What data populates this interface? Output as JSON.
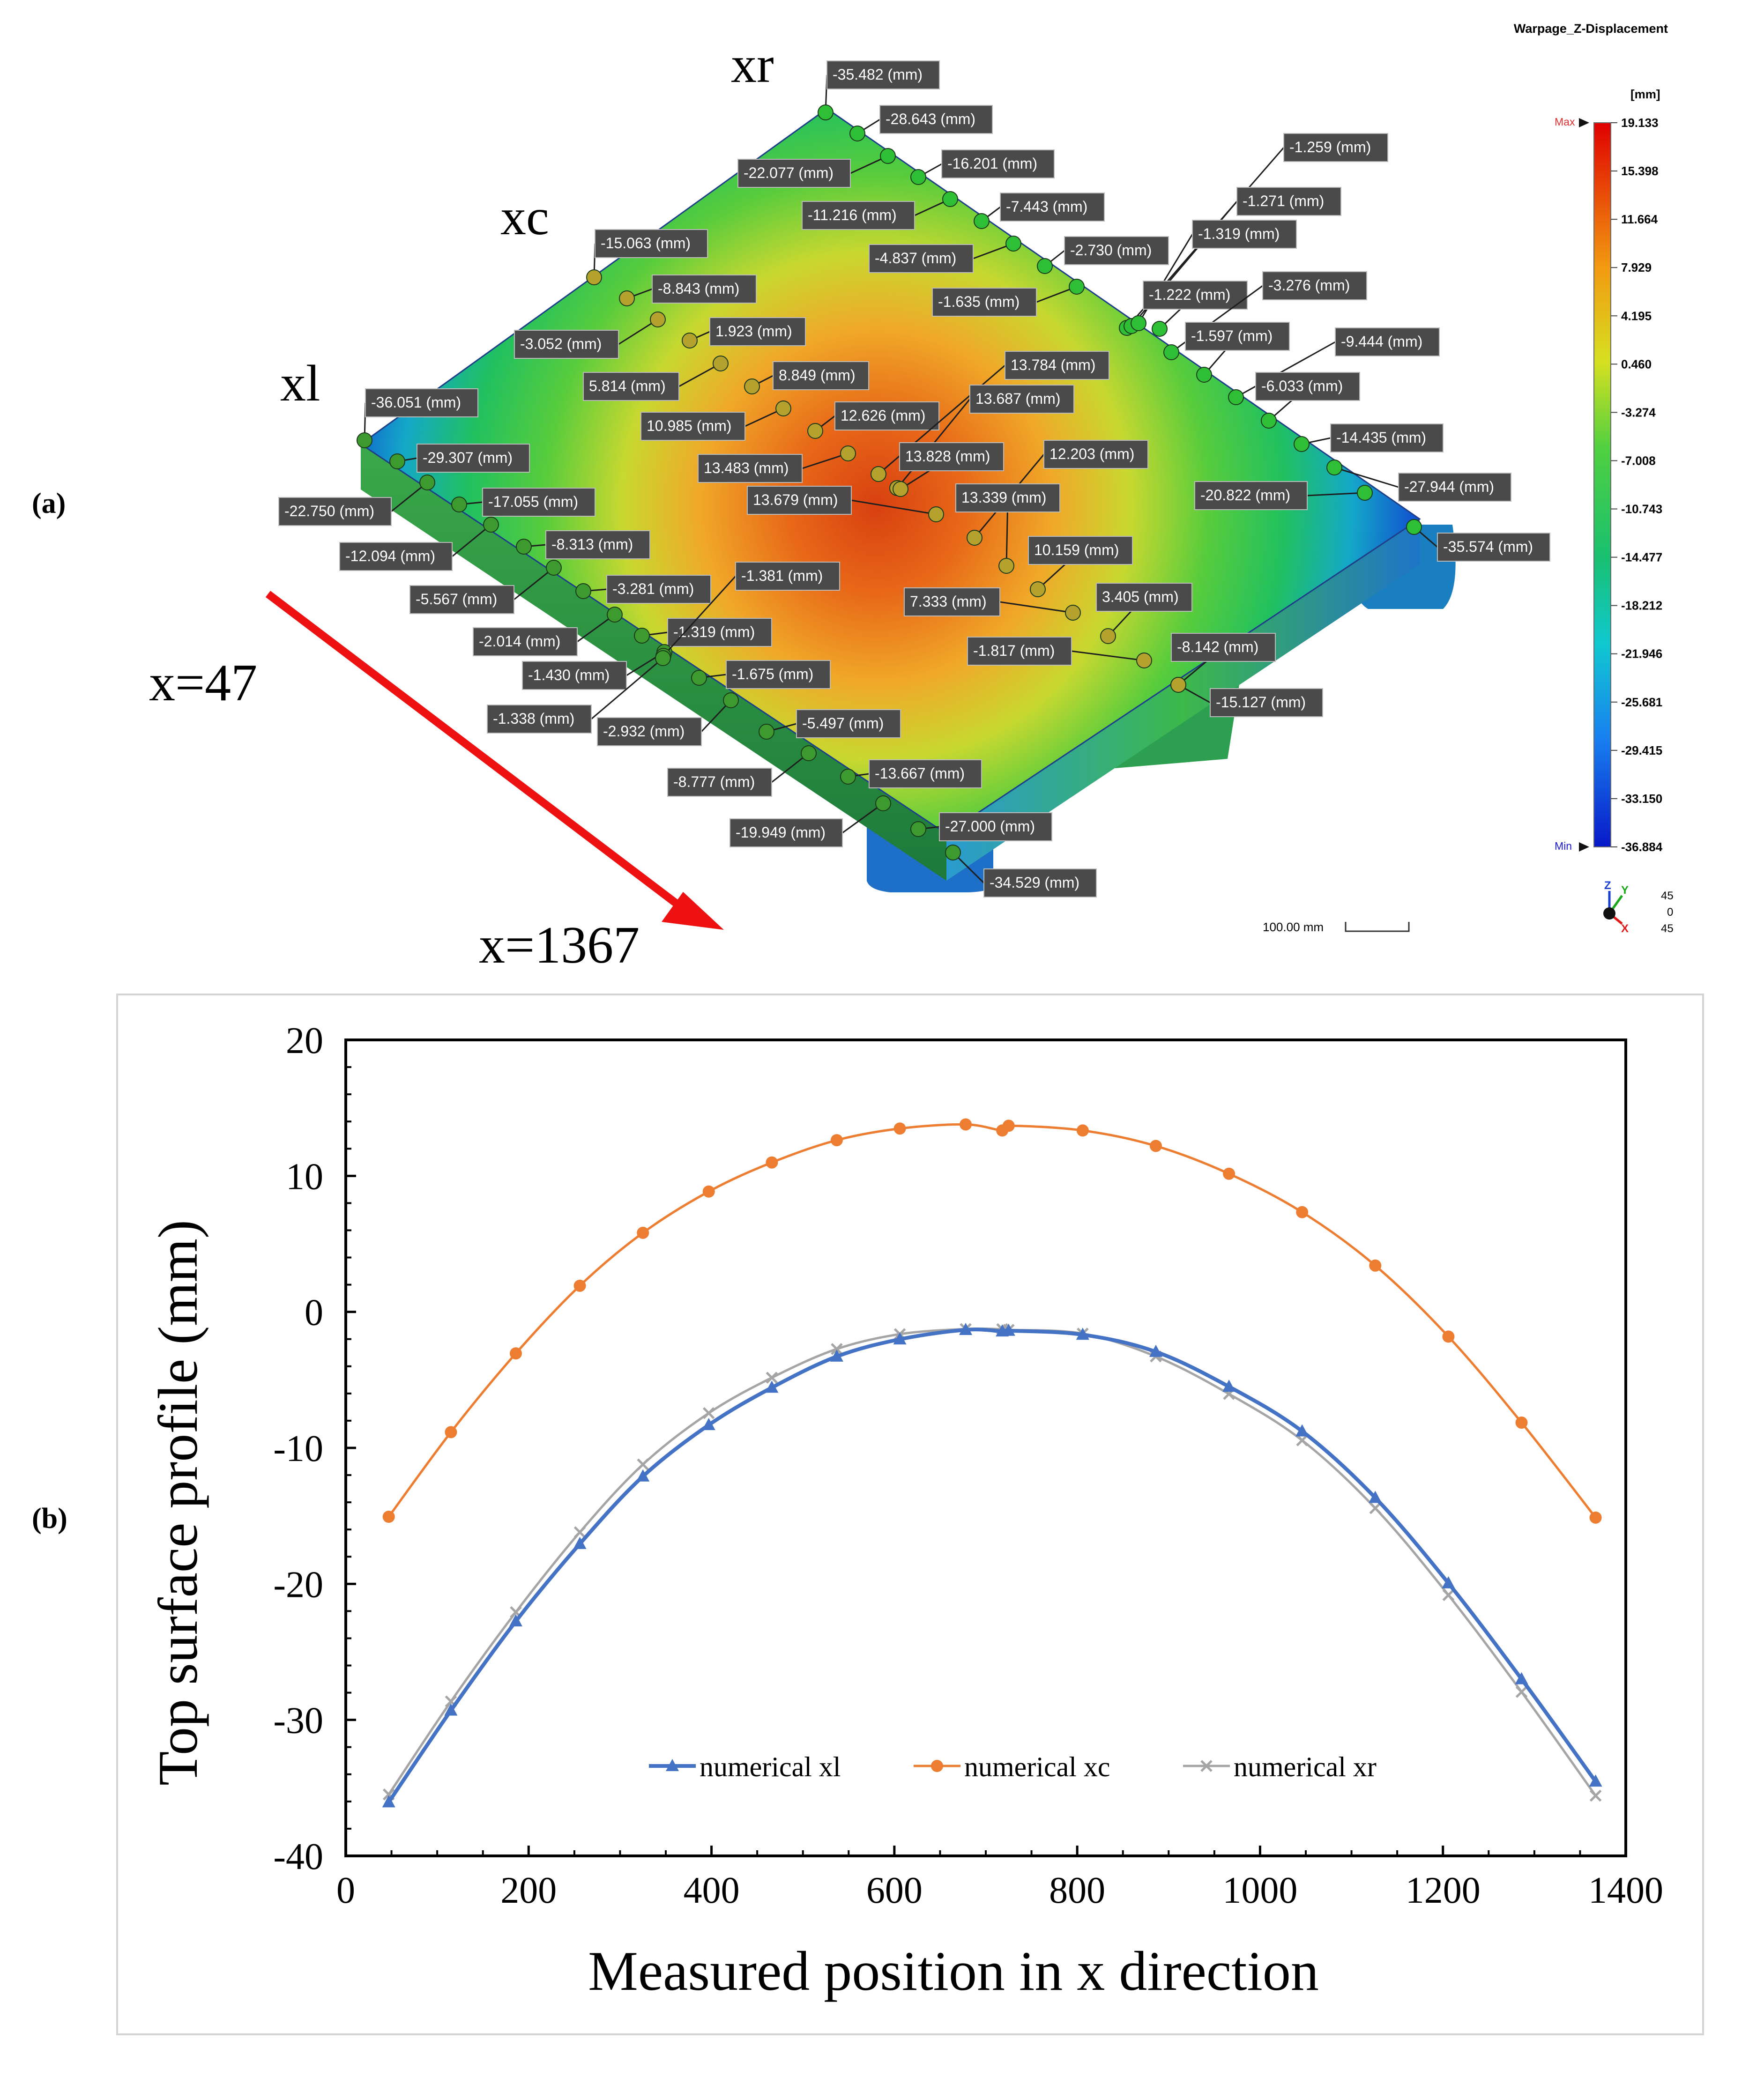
{
  "panels": {
    "a": "(a)",
    "b": "(b)"
  },
  "sim": {
    "result_title": "Warpage_Z-Displacement",
    "row_labels": {
      "xl": "xl",
      "xc": "xc",
      "xr": "xr"
    },
    "arrow_start_label": "x=47",
    "arrow_end_label": "x=1367",
    "scale_bar_label": "100.00 mm",
    "legend_unit": "[mm]",
    "legend_max_label": "Max",
    "legend_min_label": "Min",
    "legend_ticks": [
      "19.133",
      "15.398",
      "11.664",
      "7.929",
      "4.195",
      "0.460",
      "-3.274",
      "-7.008",
      "-10.743",
      "-14.477",
      "-18.212",
      "-21.946",
      "-25.681",
      "-29.415",
      "-33.150",
      "-36.884"
    ],
    "legend_colors": [
      "#e00000",
      "#ee5010",
      "#f29a10",
      "#f0c820",
      "#d6e020",
      "#9ee030",
      "#50d040",
      "#1ec850",
      "#18c070",
      "#10c0a0",
      "#10c8d0",
      "#10b0f0",
      "#1880f0",
      "#1050e0",
      "#0a30d0",
      "#0818c8"
    ],
    "triad": {
      "z": "Z",
      "y": "Y",
      "x": "X",
      "a1": "45",
      "a2": "0",
      "a3": "45"
    },
    "xl_callouts": [
      "-36.051 (mm)",
      "-29.307 (mm)",
      "-22.750 (mm)",
      "-17.055 (mm)",
      "-12.094 (mm)",
      "-8.313 (mm)",
      "-5.567 (mm)",
      "-3.281 (mm)",
      "-2.014 (mm)",
      "-1.319 (mm)",
      "-1.430 (mm)",
      "-1.381 (mm)",
      "-1.338 (mm)",
      "-1.675 (mm)",
      "-2.932 (mm)",
      "-5.497 (mm)",
      "-8.777 (mm)",
      "-13.667 (mm)",
      "-19.949 (mm)",
      "-27.000 (mm)",
      "-34.529 (mm)"
    ],
    "xc_callouts": [
      "-15.063 (mm)",
      "-8.843 (mm)",
      "-3.052 (mm)",
      "1.923 (mm)",
      "5.814 (mm)",
      "8.849 (mm)",
      "10.985 (mm)",
      "12.626 (mm)",
      "13.483 (mm)",
      "13.784 (mm)",
      "13.687 (mm)",
      "13.828 (mm)",
      "13.679 (mm)",
      "12.203 (mm)",
      "13.339 (mm)",
      "10.159 (mm)",
      "7.333 (mm)",
      "3.405 (mm)",
      "-1.817 (mm)",
      "-8.142 (mm)",
      "-15.127 (mm)"
    ],
    "xr_callouts": [
      "-35.482 (mm)",
      "-28.643 (mm)",
      "-22.077 (mm)",
      "-16.201 (mm)",
      "-11.216 (mm)",
      "-7.443 (mm)",
      "-4.837 (mm)",
      "-2.730 (mm)",
      "-1.635 (mm)",
      "-1.259 (mm)",
      "-1.271 (mm)",
      "-1.319 (mm)",
      "-1.222 (mm)",
      "-3.276 (mm)",
      "-1.597 (mm)",
      "-9.444 (mm)",
      "-6.033 (mm)",
      "-14.435 (mm)",
      "-27.944 (mm)",
      "-20.822 (mm)",
      "-35.574 (mm)"
    ]
  },
  "chart_data": {
    "type": "line",
    "title": "",
    "xlabel": "Measured position in x direction",
    "ylabel": "Top surface profile (mm)",
    "xlim": [
      0,
      1400
    ],
    "ylim": [
      -40,
      20
    ],
    "xticks": [
      0,
      200,
      400,
      600,
      800,
      1000,
      1200,
      1400
    ],
    "yticks": [
      20,
      10,
      0,
      -10,
      -20,
      -30,
      -40
    ],
    "grid": false,
    "legend_position": "bottom-center",
    "series": [
      {
        "name": "numerical xl",
        "color": "#4472c4",
        "marker": "triangle",
        "x": [
          47,
          115,
          186,
          256,
          325,
          397,
          466,
          537,
          606,
          678,
          718,
          725,
          806,
          886,
          966,
          1046,
          1126,
          1206,
          1286,
          1367
        ],
        "y": [
          -36.051,
          -29.307,
          -22.75,
          -17.055,
          -12.094,
          -8.313,
          -5.567,
          -3.281,
          -2.014,
          -1.319,
          -1.43,
          -1.381,
          -1.675,
          -2.932,
          -5.497,
          -8.777,
          -13.667,
          -19.949,
          -27.0,
          -34.529
        ]
      },
      {
        "name": "numerical xc",
        "color": "#ed7d31",
        "marker": "circle",
        "x": [
          47,
          115,
          186,
          256,
          325,
          397,
          466,
          537,
          606,
          678,
          718,
          725,
          806,
          886,
          966,
          1046,
          1126,
          1206,
          1286,
          1367
        ],
        "y": [
          -15.063,
          -8.843,
          -3.052,
          1.923,
          5.814,
          8.849,
          10.985,
          12.626,
          13.483,
          13.784,
          13.339,
          13.687,
          13.339,
          12.203,
          10.159,
          7.333,
          3.405,
          -1.817,
          -8.142,
          -15.127
        ]
      },
      {
        "name": "numerical xr",
        "color": "#a5a5a5",
        "marker": "x",
        "x": [
          47,
          115,
          186,
          256,
          325,
          397,
          466,
          537,
          606,
          678,
          718,
          725,
          806,
          886,
          966,
          1046,
          1126,
          1206,
          1286,
          1367
        ],
        "y": [
          -35.482,
          -28.643,
          -22.077,
          -16.201,
          -11.216,
          -7.443,
          -4.837,
          -2.73,
          -1.635,
          -1.259,
          -1.271,
          -1.319,
          -1.597,
          -3.276,
          -6.033,
          -9.444,
          -14.435,
          -20.822,
          -27.944,
          -35.574
        ]
      }
    ]
  }
}
